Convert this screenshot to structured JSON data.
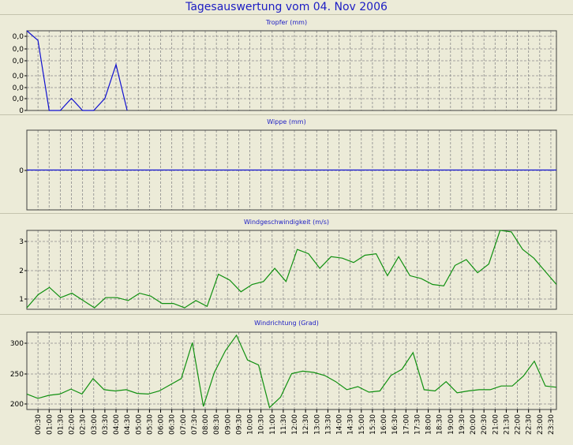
{
  "title": "Tagesauswertung vom 04. Nov 2006",
  "x_labels": [
    "00:30",
    "01:00",
    "01:30",
    "02:00",
    "02:30",
    "03:00",
    "03:30",
    "04:00",
    "04:30",
    "05:00",
    "05:30",
    "06:00",
    "06:30",
    "07:00",
    "07:30",
    "08:00",
    "08:30",
    "09:00",
    "09:30",
    "10:00",
    "10:30",
    "11:00",
    "11:30",
    "12:00",
    "12:30",
    "13:00",
    "13:30",
    "14:00",
    "14:30",
    "15:00",
    "15:30",
    "16:00",
    "16:30",
    "17:00",
    "17:30",
    "18:00",
    "18:30",
    "19:00",
    "19:30",
    "20:00",
    "20:30",
    "21:00",
    "21:30",
    "22:00",
    "22:30",
    "23:00",
    "23:30"
  ],
  "colors": {
    "rain": "#1010d0",
    "wind": "#109010",
    "grid": "#8a8a8a",
    "frame": "#404040"
  },
  "chart_data": [
    {
      "type": "line",
      "title": "Tropfer (mm)",
      "xlabel": "",
      "ylabel": "",
      "ytick_labels": [
        "0,0",
        "0,0",
        "0,0",
        "0,0",
        "0,0",
        "0,0",
        "0"
      ],
      "ylim": [
        0,
        6.6
      ],
      "series": [
        {
          "values": [
            6.6,
            5.8,
            0,
            0,
            1.0,
            0,
            0,
            1.0,
            3.8,
            0
          ]
        }
      ]
    },
    {
      "type": "line",
      "title": "Wippe (mm)",
      "xlabel": "",
      "ylabel": "",
      "ytick_labels": [
        "0"
      ],
      "ylim": [
        -1,
        1
      ],
      "series": [
        {
          "values": [
            0,
            0
          ]
        }
      ]
    },
    {
      "type": "line",
      "title": "Windgeschwindigkeit (m/s)",
      "xlabel": "",
      "ylabel": "",
      "ytick_labels": [
        "1",
        "2",
        "3"
      ],
      "ylim": [
        0.65,
        3.35
      ],
      "series": [
        {
          "values": [
            0.7,
            1.15,
            1.4,
            1.05,
            1.2,
            0.95,
            0.7,
            1.05,
            1.05,
            0.95,
            1.2,
            1.1,
            0.85,
            0.85,
            0.7,
            0.95,
            0.75,
            1.85,
            1.65,
            1.25,
            1.5,
            1.6,
            2.05,
            1.6,
            2.7,
            2.55,
            2.05,
            2.45,
            2.4,
            2.25,
            2.5,
            2.55,
            1.8,
            2.45,
            1.8,
            1.7,
            1.5,
            1.45,
            2.15,
            2.35,
            1.9,
            2.2,
            3.35,
            3.3,
            2.7,
            2.4,
            1.95,
            1.5
          ]
        }
      ]
    },
    {
      "type": "line",
      "title": "Windrichtung (Grad)",
      "xlabel": "",
      "ylabel": "",
      "ytick_labels": [
        "200",
        "250",
        "300"
      ],
      "ylim": [
        190,
        315
      ],
      "series": [
        {
          "values": [
            215,
            208,
            213,
            215,
            223,
            215,
            240,
            222,
            220,
            222,
            216,
            215,
            220,
            230,
            240,
            298,
            195,
            250,
            285,
            310,
            270,
            262,
            193,
            210,
            248,
            252,
            250,
            245,
            235,
            222,
            227,
            218,
            220,
            245,
            255,
            282,
            222,
            220,
            235,
            217,
            220,
            222,
            222,
            228,
            228,
            244,
            268,
            228,
            226
          ]
        }
      ]
    }
  ]
}
